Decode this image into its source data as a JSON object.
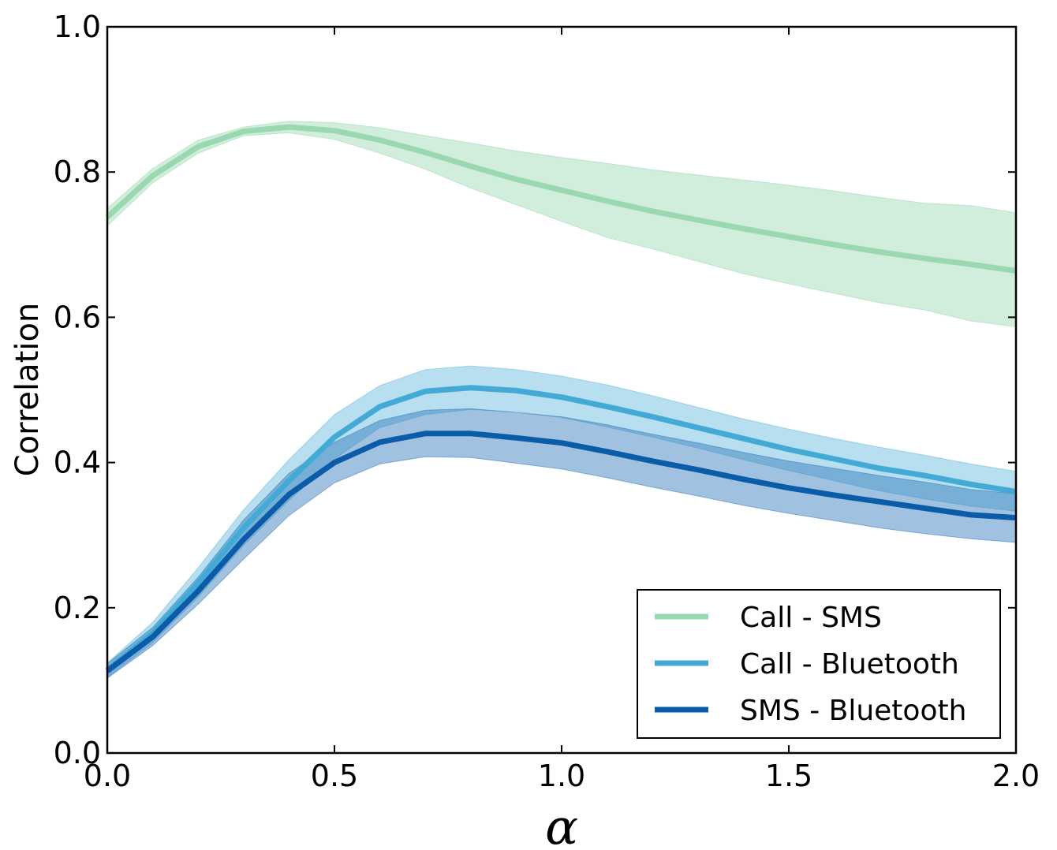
{
  "chart_data": {
    "type": "line",
    "title": "",
    "xlabel": "α",
    "ylabel": "Correlation",
    "xlim": [
      0.0,
      2.0
    ],
    "ylim": [
      0.0,
      1.0
    ],
    "xticks": [
      "0.0",
      "0.5",
      "1.0",
      "1.5",
      "2.0"
    ],
    "yticks": [
      "0.0",
      "0.2",
      "0.4",
      "0.6",
      "0.8",
      "1.0"
    ],
    "xtick_values": [
      0.0,
      0.5,
      1.0,
      1.5,
      2.0
    ],
    "ytick_values": [
      0.0,
      0.2,
      0.4,
      0.6,
      0.8,
      1.0
    ],
    "grid": false,
    "legend_position": "bottom-right",
    "x": [
      0.0,
      0.1,
      0.2,
      0.3,
      0.4,
      0.5,
      0.6,
      0.7,
      0.8,
      0.9,
      1.0,
      1.1,
      1.2,
      1.3,
      1.4,
      1.5,
      1.6,
      1.7,
      1.8,
      1.9,
      2.0
    ],
    "series": [
      {
        "name": "Call - SMS",
        "color": "#99d8b0",
        "band_color": "#99d8b0",
        "values": [
          0.738,
          0.795,
          0.835,
          0.856,
          0.862,
          0.857,
          0.844,
          0.827,
          0.808,
          0.79,
          0.775,
          0.76,
          0.746,
          0.734,
          0.722,
          0.711,
          0.7,
          0.69,
          0.681,
          0.673,
          0.664
        ],
        "lower": [
          0.726,
          0.785,
          0.826,
          0.85,
          0.854,
          0.845,
          0.826,
          0.804,
          0.778,
          0.755,
          0.732,
          0.71,
          0.694,
          0.677,
          0.66,
          0.646,
          0.633,
          0.62,
          0.61,
          0.595,
          0.587
        ],
        "upper": [
          0.75,
          0.805,
          0.844,
          0.862,
          0.87,
          0.868,
          0.861,
          0.85,
          0.84,
          0.829,
          0.82,
          0.812,
          0.803,
          0.796,
          0.789,
          0.782,
          0.774,
          0.765,
          0.757,
          0.754,
          0.744
        ]
      },
      {
        "name": "Call - Bluetooth",
        "color": "#43aad6",
        "band_color": "#5fb8de",
        "values": [
          0.114,
          0.165,
          0.234,
          0.31,
          0.375,
          0.435,
          0.477,
          0.498,
          0.503,
          0.499,
          0.49,
          0.477,
          0.463,
          0.448,
          0.433,
          0.418,
          0.405,
          0.392,
          0.382,
          0.37,
          0.36
        ],
        "lower": [
          0.104,
          0.152,
          0.215,
          0.286,
          0.348,
          0.405,
          0.448,
          0.466,
          0.473,
          0.47,
          0.462,
          0.449,
          0.435,
          0.42,
          0.404,
          0.389,
          0.375,
          0.361,
          0.35,
          0.34,
          0.333
        ],
        "upper": [
          0.124,
          0.18,
          0.255,
          0.335,
          0.404,
          0.466,
          0.506,
          0.528,
          0.533,
          0.528,
          0.519,
          0.507,
          0.492,
          0.476,
          0.46,
          0.446,
          0.433,
          0.421,
          0.41,
          0.398,
          0.388
        ]
      },
      {
        "name": "SMS - Bluetooth",
        "color": "#0a5ca8",
        "band_color": "#2c76b8",
        "values": [
          0.113,
          0.16,
          0.223,
          0.294,
          0.356,
          0.4,
          0.428,
          0.44,
          0.44,
          0.434,
          0.427,
          0.415,
          0.402,
          0.39,
          0.377,
          0.365,
          0.355,
          0.346,
          0.337,
          0.328,
          0.324
        ],
        "lower": [
          0.103,
          0.148,
          0.205,
          0.267,
          0.327,
          0.372,
          0.398,
          0.408,
          0.407,
          0.399,
          0.391,
          0.379,
          0.366,
          0.354,
          0.341,
          0.33,
          0.32,
          0.31,
          0.302,
          0.295,
          0.29
        ],
        "upper": [
          0.123,
          0.173,
          0.242,
          0.321,
          0.385,
          0.428,
          0.458,
          0.472,
          0.474,
          0.469,
          0.463,
          0.452,
          0.439,
          0.427,
          0.414,
          0.402,
          0.392,
          0.382,
          0.373,
          0.363,
          0.357
        ]
      }
    ]
  }
}
